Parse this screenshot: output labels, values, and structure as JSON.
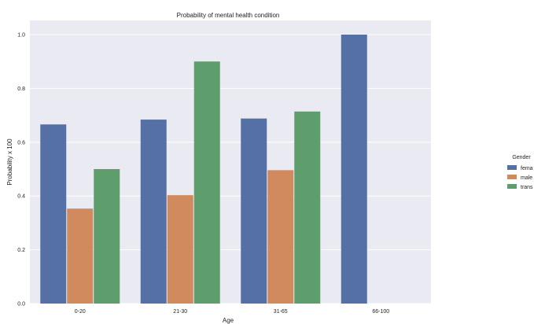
{
  "chart_data": {
    "type": "bar",
    "title": "Probability of mental health condition",
    "xlabel": "Age",
    "ylabel": "Probability x 100",
    "categories": [
      "0-20",
      "21-30",
      "31-65",
      "66-100"
    ],
    "series": [
      {
        "name": "fema",
        "color": "#5470a4",
        "values": [
          0.666,
          0.684,
          0.688,
          1.0
        ]
      },
      {
        "name": "male",
        "color": "#d08a5e",
        "values": [
          0.353,
          0.403,
          0.496,
          null
        ]
      },
      {
        "name": "trans",
        "color": "#5e9e6c",
        "values": [
          0.5,
          0.9,
          0.714,
          null
        ]
      }
    ],
    "ylim": [
      0,
      1.0
    ],
    "yticks": [
      "0.0",
      "0.2",
      "0.4",
      "0.6",
      "0.8",
      "1.0"
    ],
    "grid": true,
    "legend": {
      "title": "Gender",
      "position": "right"
    },
    "background": "#eaeaf2"
  }
}
